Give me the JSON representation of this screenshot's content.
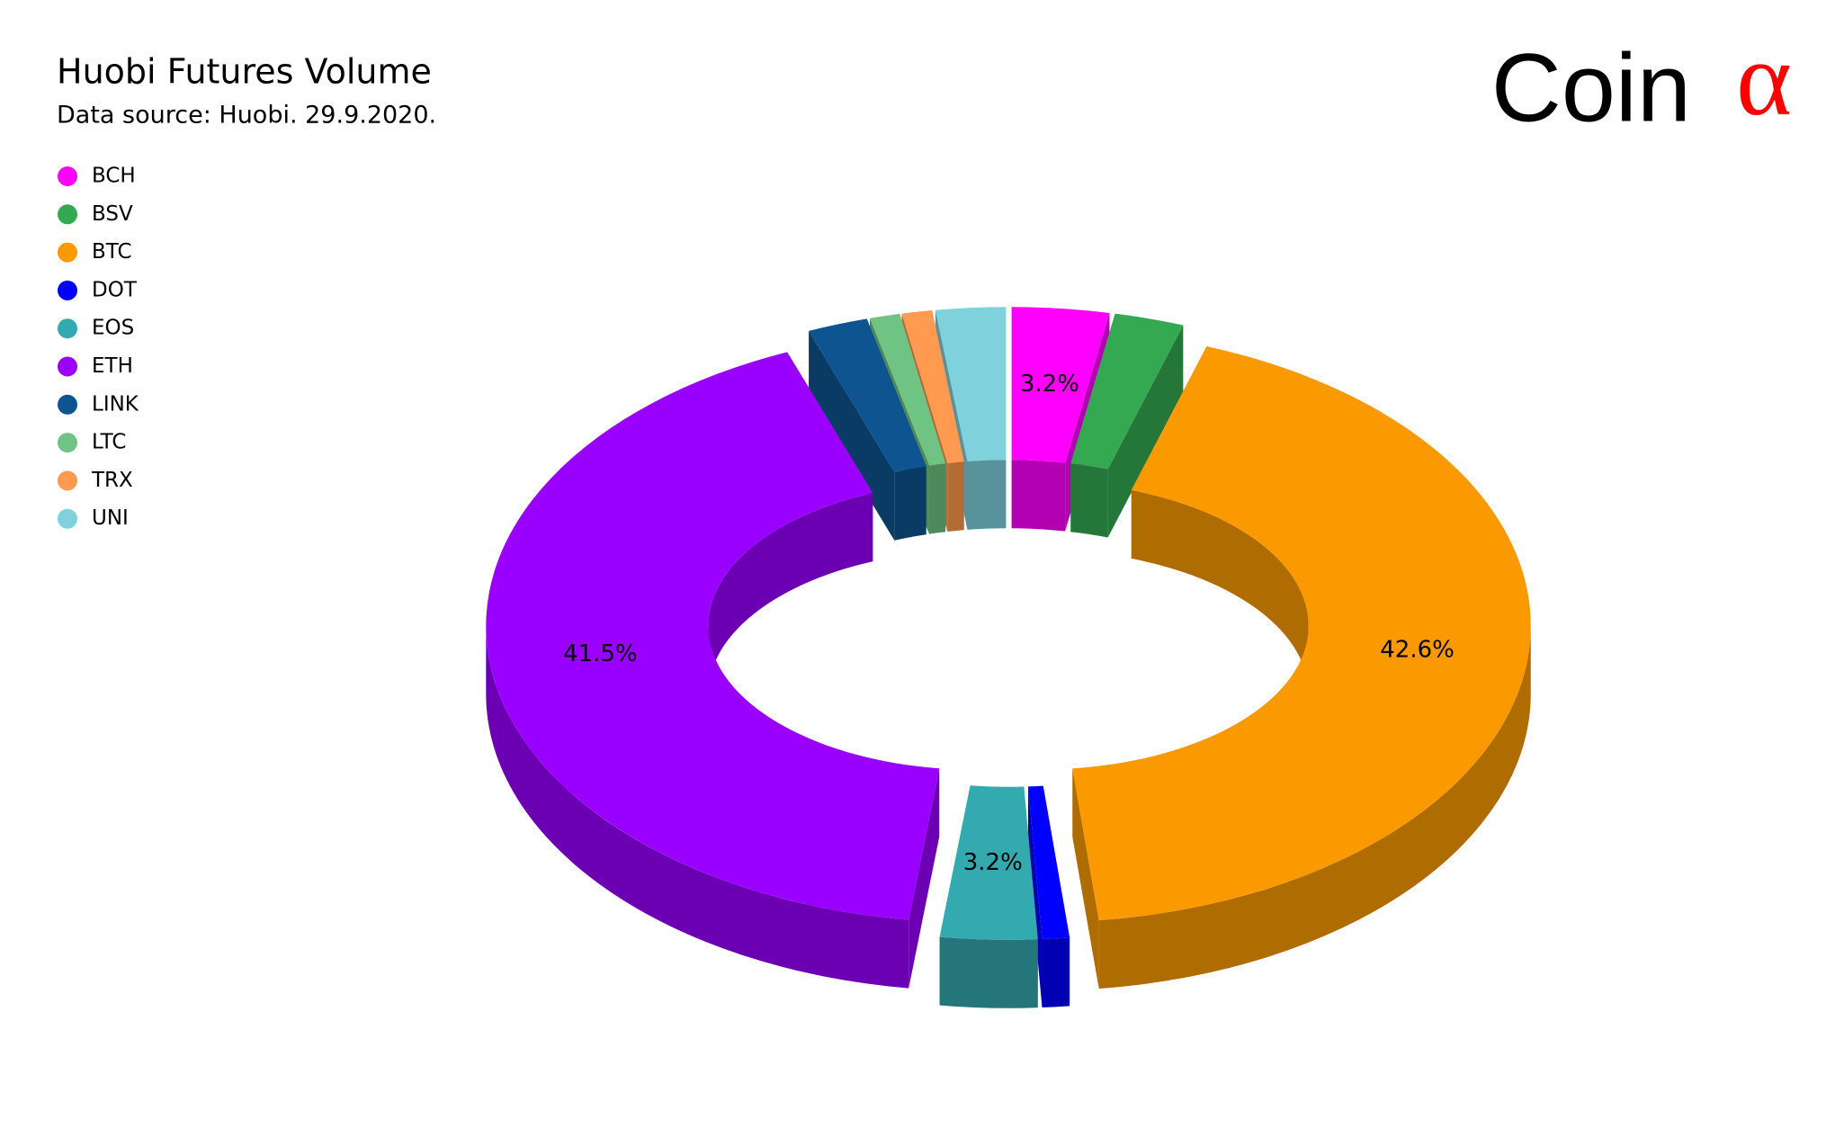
{
  "chart_data": {
    "type": "donut3d",
    "title": "Huobi Futures Volume",
    "subtitle": "Data source: Huobi. 29.9.2020.",
    "categories": [
      "BCH",
      "BSV",
      "BTC",
      "DOT",
      "EOS",
      "ETH",
      "LINK",
      "LTC",
      "TRX",
      "UNI"
    ],
    "values": [
      3.2,
      2.3,
      42.6,
      0.9,
      3.2,
      41.5,
      2.0,
      1.0,
      1.0,
      2.3
    ],
    "value_labels": [
      "3.2%",
      null,
      "42.6%",
      null,
      "3.2%",
      "41.5%",
      null,
      null,
      null,
      null
    ],
    "colors": [
      "#ff00ff",
      "#35a852",
      "#fa9a00",
      "#0000ff",
      "#33a9b0",
      "#9900ff",
      "#0e5490",
      "#6fc383",
      "#ff9a50",
      "#7fd1dc"
    ],
    "legend": "top-left"
  },
  "logo": {
    "text": "Coin",
    "symbol": "α"
  }
}
